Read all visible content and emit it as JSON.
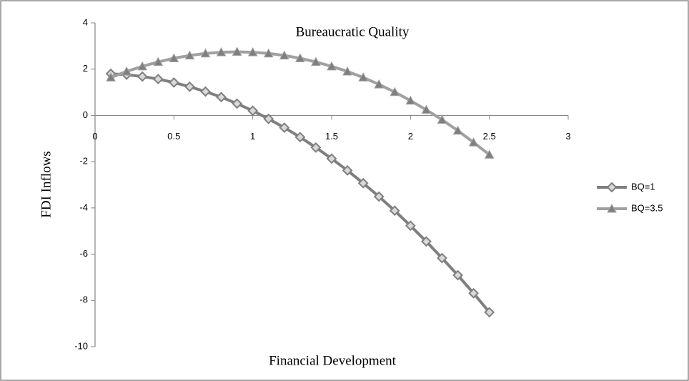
{
  "chart_data": {
    "type": "line",
    "title": "Bureaucratic Quality",
    "x_label": "Financial Development",
    "y_label": "FDI Inflows",
    "x": [
      0.1,
      0.2,
      0.3,
      0.4,
      0.5,
      0.6,
      0.7,
      0.8,
      0.9,
      1.0,
      1.1,
      1.2,
      1.3,
      1.4,
      1.5,
      1.6,
      1.7,
      1.8,
      1.9,
      2.0,
      2.1,
      2.2,
      2.3,
      2.4,
      2.5
    ],
    "series": [
      {
        "name": "BQ=1",
        "color": "#7f7f7f",
        "marker": "diamond",
        "values": [
          1.8,
          1.76,
          1.68,
          1.57,
          1.42,
          1.24,
          1.03,
          0.79,
          0.51,
          0.2,
          -0.15,
          -0.53,
          -0.94,
          -1.39,
          -1.87,
          -2.38,
          -2.93,
          -3.51,
          -4.12,
          -4.77,
          -5.45,
          -6.17,
          -6.91,
          -7.69,
          -8.51
        ]
      },
      {
        "name": "BQ=3.5",
        "color": "#a0a0a0",
        "marker": "triangle",
        "values": [
          1.64,
          1.9,
          2.12,
          2.31,
          2.47,
          2.59,
          2.68,
          2.73,
          2.75,
          2.73,
          2.68,
          2.59,
          2.47,
          2.31,
          2.12,
          1.9,
          1.64,
          1.34,
          1.01,
          0.64,
          0.24,
          -0.19,
          -0.66,
          -1.17,
          -1.7
        ]
      }
    ],
    "xlim": [
      0,
      3
    ],
    "xticks": [
      0,
      0.5,
      1,
      1.5,
      2,
      2.5,
      3
    ],
    "ylim": [
      -10,
      4
    ],
    "yticks": [
      -10,
      -8,
      -6,
      -4,
      -2,
      0,
      2,
      4
    ],
    "legend": "right"
  }
}
